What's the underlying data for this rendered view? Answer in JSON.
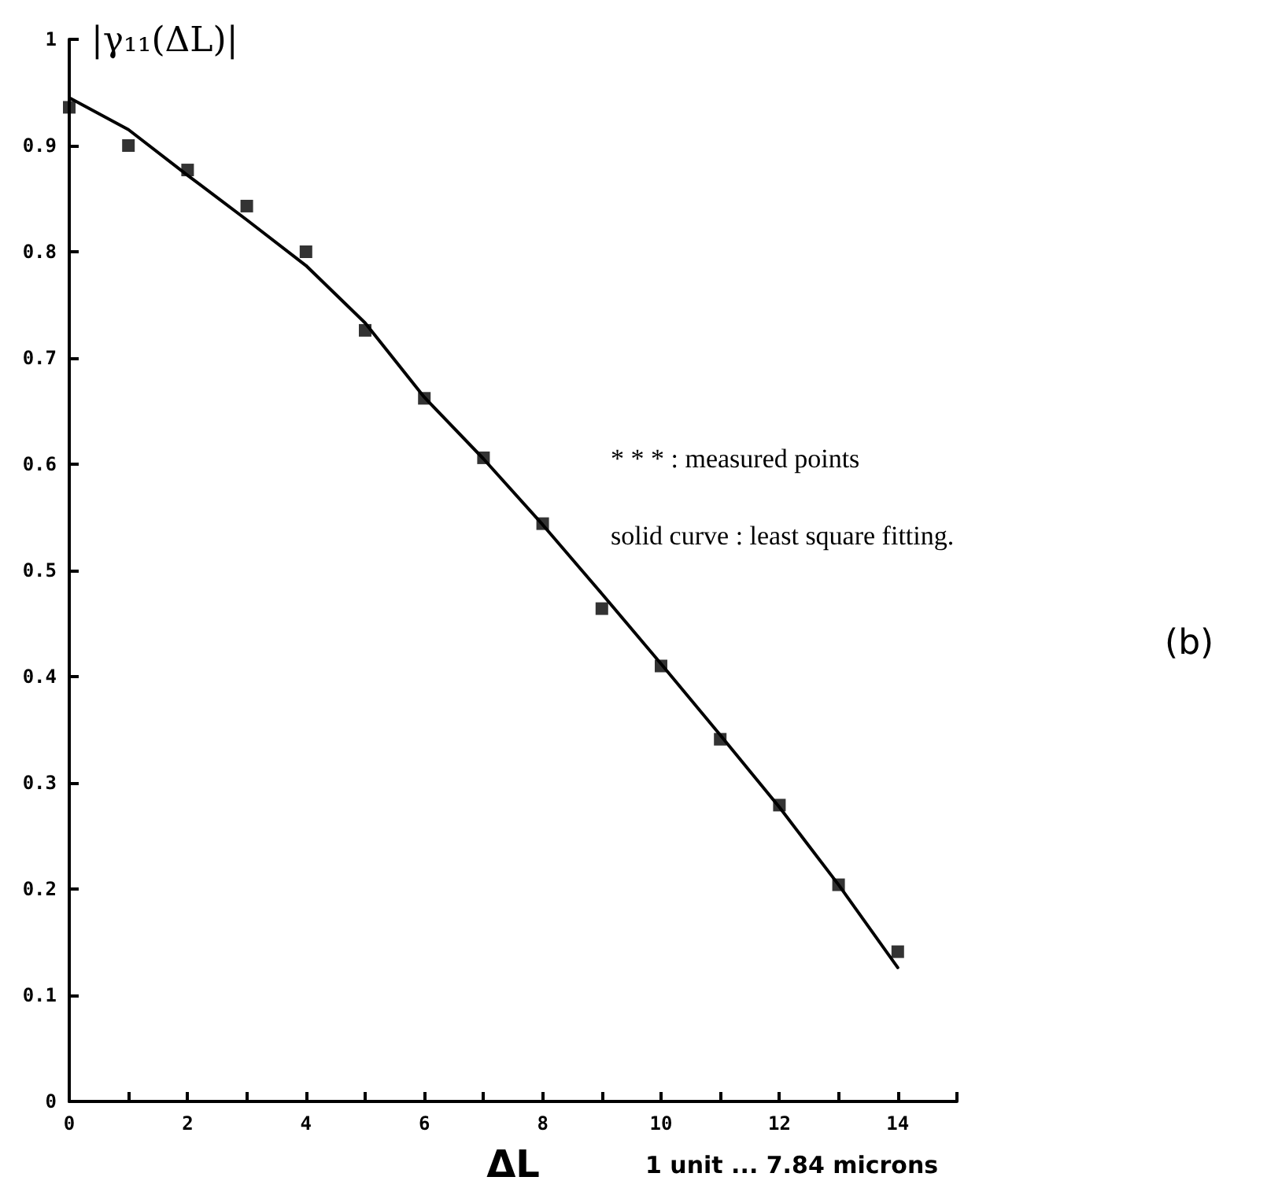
{
  "chart_data": {
    "type": "scatter",
    "xlabel": "ΔL",
    "ylabel": "|γ₁₁(ΔL)|",
    "annotations": [
      "1 unit ... 7.84 microns",
      "(b)",
      "* * * : measured points",
      "solid curve : least square fitting."
    ],
    "x": [
      0,
      1,
      2,
      3,
      4,
      5,
      6,
      7,
      8,
      9,
      10,
      11,
      12,
      13,
      14
    ],
    "series": [
      {
        "color": "#000000",
        "marker": "square",
        "values": [
          0.936,
          0.9,
          0.877,
          0.843,
          0.8,
          0.726,
          0.662,
          0.606,
          0.544,
          0.464,
          0.41,
          0.341,
          0.279,
          0.204,
          0.141
        ]
      },
      {
        "type": "line",
        "color": "#000000",
        "marker": "none",
        "line_style": "solid",
        "values": [
          0.945,
          0.915,
          0.872,
          0.83,
          0.787,
          0.733,
          0.663,
          0.605,
          0.543,
          0.478,
          0.412,
          0.345,
          0.277,
          0.204,
          0.126
        ]
      }
    ],
    "xlim": [
      0,
      15
    ],
    "xticks": [
      0,
      {
        "value": 1,
        "label": null
      },
      2,
      {
        "value": 3,
        "label": null
      },
      4,
      {
        "value": 5,
        "label": null
      },
      6,
      {
        "value": 7,
        "label": null
      },
      8,
      {
        "value": 9,
        "label": null
      },
      10,
      {
        "value": 11,
        "label": null
      },
      12,
      {
        "value": 13,
        "label": null
      },
      14,
      {
        "value": 15,
        "label": null
      }
    ],
    "ylim": [
      0,
      1
    ],
    "yticks": [
      0,
      0.1,
      0.2,
      0.3,
      0.4,
      0.5,
      0.6,
      0.7,
      0.8,
      0.9,
      1
    ]
  }
}
